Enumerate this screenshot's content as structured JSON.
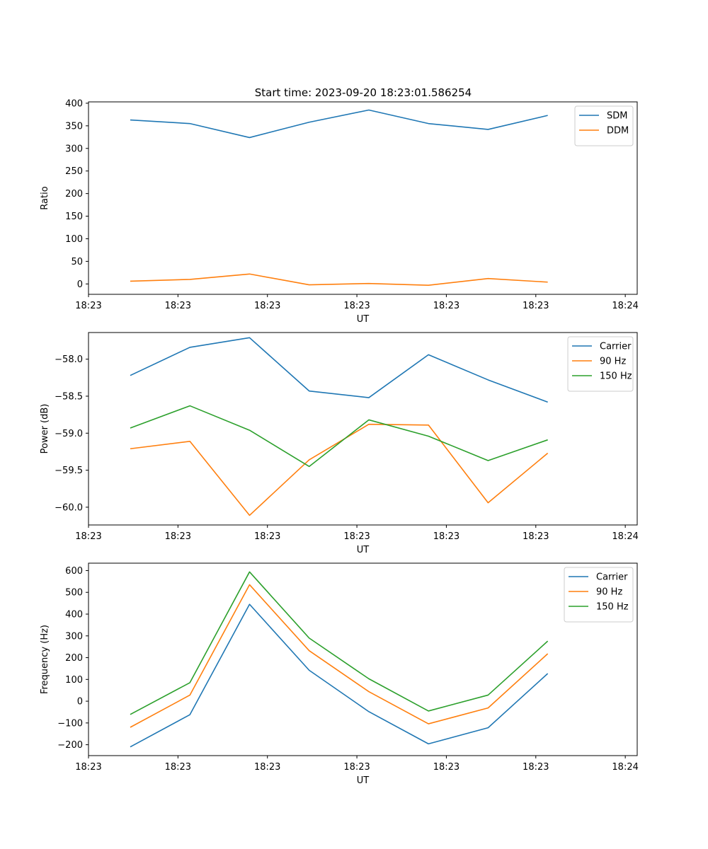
{
  "figure": {
    "suptitle": "Start time: 2023-09-20 18:23:01.586254"
  },
  "colors": {
    "c0": "#1f77b4",
    "c1": "#ff7f0e",
    "c2": "#2ca02c",
    "axes": "#000000",
    "legend_edge": "#cccccc"
  },
  "chart_data": [
    {
      "type": "line",
      "title": "",
      "xlabel": "UT",
      "ylabel": "Ratio",
      "x": [
        1,
        2,
        3,
        4,
        5,
        6,
        7,
        8
      ],
      "xlim": [
        0.3,
        9.5
      ],
      "xticks": [
        0.3,
        1.8,
        3.3,
        4.8,
        6.3,
        7.8,
        9.3
      ],
      "xtick_labels": [
        "18:23",
        "18:23",
        "18:23",
        "18:23",
        "18:23",
        "18:23",
        "18:24"
      ],
      "ylim": [
        -23,
        403
      ],
      "yticks": [
        0,
        50,
        100,
        150,
        200,
        250,
        300,
        350,
        400
      ],
      "ytick_labels": [
        "0",
        "50",
        "100",
        "150",
        "200",
        "250",
        "300",
        "350",
        "400"
      ],
      "legend": "top-right",
      "series": [
        {
          "name": "SDM",
          "color": "c0",
          "values": [
            363,
            355,
            324,
            358,
            385,
            355,
            342,
            373
          ]
        },
        {
          "name": "DDM",
          "color": "c1",
          "values": [
            6,
            10,
            22,
            -2,
            1,
            -3,
            12,
            4
          ]
        }
      ]
    },
    {
      "type": "line",
      "title": "",
      "xlabel": "UT",
      "ylabel": "Power (dB)",
      "x": [
        1,
        2,
        3,
        4,
        5,
        6,
        7,
        8
      ],
      "xlim": [
        0.3,
        9.5
      ],
      "xticks": [
        0.3,
        1.8,
        3.3,
        4.8,
        6.3,
        7.8,
        9.3
      ],
      "xtick_labels": [
        "18:23",
        "18:23",
        "18:23",
        "18:23",
        "18:23",
        "18:23",
        "18:24"
      ],
      "ylim": [
        -60.24,
        -57.64
      ],
      "yticks": [
        -60.0,
        -59.5,
        -59.0,
        -58.5,
        -58.0
      ],
      "ytick_labels": [
        "−60.0",
        "−59.5",
        "−59.0",
        "−58.5",
        "−58.0"
      ],
      "legend": "top-right",
      "series": [
        {
          "name": "Carrier",
          "color": "c0",
          "values": [
            -58.22,
            -57.84,
            -57.71,
            -58.43,
            -58.52,
            -57.94,
            -58.28,
            -58.58
          ]
        },
        {
          "name": "90 Hz",
          "color": "c1",
          "values": [
            -59.21,
            -59.11,
            -60.11,
            -59.36,
            -58.88,
            -58.89,
            -59.94,
            -59.27
          ]
        },
        {
          "name": "150 Hz",
          "color": "c2",
          "values": [
            -58.93,
            -58.63,
            -58.96,
            -59.45,
            -58.82,
            -59.04,
            -59.37,
            -59.09
          ]
        }
      ]
    },
    {
      "type": "line",
      "title": "",
      "xlabel": "UT",
      "ylabel": "Frequency (Hz)",
      "x": [
        1,
        2,
        3,
        4,
        5,
        6,
        7,
        8
      ],
      "xlim": [
        0.3,
        9.5
      ],
      "xticks": [
        0.3,
        1.8,
        3.3,
        4.8,
        6.3,
        7.8,
        9.3
      ],
      "xtick_labels": [
        "18:23",
        "18:23",
        "18:23",
        "18:23",
        "18:23",
        "18:23",
        "18:24"
      ],
      "ylim": [
        -250,
        634
      ],
      "yticks": [
        -200,
        -100,
        0,
        100,
        200,
        300,
        400,
        500,
        600
      ],
      "ytick_labels": [
        "−200",
        "−100",
        "0",
        "100",
        "200",
        "300",
        "400",
        "500",
        "600"
      ],
      "legend": "top-right",
      "series": [
        {
          "name": "Carrier",
          "color": "c0",
          "values": [
            -210,
            -62,
            445,
            142,
            -48,
            -196,
            -122,
            127
          ]
        },
        {
          "name": "90 Hz",
          "color": "c1",
          "values": [
            -120,
            28,
            535,
            232,
            44,
            -104,
            -31,
            218
          ]
        },
        {
          "name": "150 Hz",
          "color": "c2",
          "values": [
            -61,
            85,
            594,
            290,
            103,
            -45,
            28,
            276
          ]
        }
      ]
    }
  ]
}
